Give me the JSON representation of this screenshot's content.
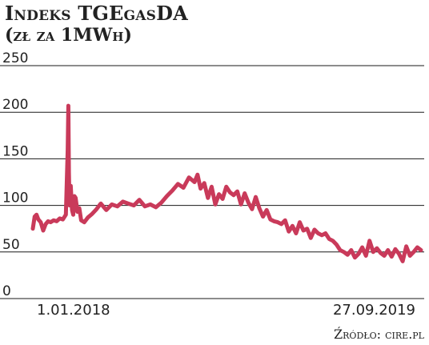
{
  "header": {
    "title": "Indeks TGEgasDA",
    "subtitle": "(zł za 1MWh)"
  },
  "source": "Źródło: cire.pl",
  "colors": {
    "series": "#c93a5a",
    "grid": "#1a1a1a",
    "text": "#222222"
  },
  "chart_data": {
    "type": "line",
    "title": "Indeks TGEgasDA",
    "subtitle": "(zł za 1MWh)",
    "xlabel": "",
    "ylabel": "",
    "ylim": [
      0,
      250
    ],
    "yticks": [
      0,
      50,
      100,
      150,
      200,
      250
    ],
    "x_tick_labels": [
      "1.01.2018",
      "27.09.2019"
    ],
    "x": [
      "2018-01-01",
      "2018-01-04",
      "2018-01-07",
      "2018-01-10",
      "2018-01-14",
      "2018-01-18",
      "2018-01-22",
      "2018-01-26",
      "2018-01-30",
      "2018-02-04",
      "2018-02-09",
      "2018-02-14",
      "2018-02-19",
      "2018-02-24",
      "2018-02-27",
      "2018-02-28",
      "2018-03-01",
      "2018-03-02",
      "2018-03-04",
      "2018-03-06",
      "2018-03-08",
      "2018-03-10",
      "2018-03-12",
      "2018-03-15",
      "2018-03-18",
      "2018-03-21",
      "2018-03-26",
      "2018-04-01",
      "2018-04-08",
      "2018-04-15",
      "2018-04-22",
      "2018-05-01",
      "2018-05-10",
      "2018-05-19",
      "2018-05-28",
      "2018-06-06",
      "2018-06-15",
      "2018-06-24",
      "2018-07-03",
      "2018-07-12",
      "2018-07-21",
      "2018-07-30",
      "2018-08-08",
      "2018-08-17",
      "2018-08-26",
      "2018-09-04",
      "2018-09-13",
      "2018-09-22",
      "2018-09-27",
      "2018-10-02",
      "2018-10-08",
      "2018-10-14",
      "2018-10-20",
      "2018-10-26",
      "2018-11-01",
      "2018-11-07",
      "2018-11-13",
      "2018-11-19",
      "2018-11-25",
      "2018-12-01",
      "2018-12-07",
      "2018-12-13",
      "2018-12-19",
      "2018-12-25",
      "2018-12-31",
      "2019-01-06",
      "2019-01-12",
      "2019-01-18",
      "2019-01-24",
      "2019-01-30",
      "2019-02-05",
      "2019-02-11",
      "2019-02-17",
      "2019-02-23",
      "2019-03-01",
      "2019-03-07",
      "2019-03-13",
      "2019-03-19",
      "2019-03-25",
      "2019-03-31",
      "2019-04-06",
      "2019-04-12",
      "2019-04-18",
      "2019-04-24",
      "2019-04-30",
      "2019-05-06",
      "2019-05-12",
      "2019-05-18",
      "2019-05-24",
      "2019-05-30",
      "2019-06-05",
      "2019-06-11",
      "2019-06-17",
      "2019-06-23",
      "2019-06-29",
      "2019-07-05",
      "2019-07-11",
      "2019-07-17",
      "2019-07-23",
      "2019-07-29",
      "2019-08-04",
      "2019-08-10",
      "2019-08-16",
      "2019-08-22",
      "2019-08-28",
      "2019-09-03",
      "2019-09-09",
      "2019-09-15",
      "2019-09-21",
      "2019-09-27"
    ],
    "series": [
      {
        "values": [
          75,
          88,
          90,
          85,
          82,
          73,
          80,
          83,
          82,
          84,
          83,
          86,
          85,
          90,
          160,
          207,
          135,
          100,
          121,
          95,
          90,
          110,
          108,
          93,
          97,
          84,
          82,
          87,
          91,
          96,
          102,
          95,
          101,
          99,
          104,
          102,
          100,
          106,
          99,
          101,
          98,
          103,
          110,
          116,
          123,
          119,
          130,
          125,
          133,
          118,
          124,
          108,
          120,
          101,
          112,
          107,
          120,
          114,
          111,
          115,
          101,
          113,
          103,
          96,
          109,
          97,
          88,
          95,
          85,
          83,
          82,
          80,
          84,
          72,
          78,
          70,
          82,
          73,
          75,
          65,
          74,
          70,
          68,
          70,
          64,
          62,
          58,
          52,
          50,
          47,
          52,
          44,
          48,
          55,
          46,
          62,
          50,
          54,
          49,
          46,
          52,
          45,
          53,
          48,
          40,
          56,
          46,
          50,
          55,
          52
        ]
      }
    ]
  }
}
